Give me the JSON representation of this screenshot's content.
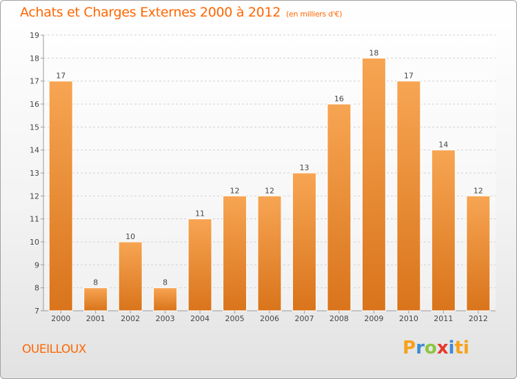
{
  "header": {
    "title": "Achats et Charges Externes 2000 à 2012",
    "subtitle": "(en milliers d'€)"
  },
  "footer": {
    "commune": "OUEILLOUX",
    "logo_text": "Proxiti",
    "logo_colors": [
      "#f7a11a",
      "#3b8bd6",
      "#8cc63f",
      "#e8372c",
      "#3b8bd6",
      "#f7a11a"
    ]
  },
  "chart_data": {
    "type": "bar",
    "title": "Achats et Charges Externes 2000 à 2012",
    "subtitle": "(en milliers d'€)",
    "categories": [
      "2000",
      "2001",
      "2002",
      "2003",
      "2004",
      "2005",
      "2006",
      "2007",
      "2008",
      "2009",
      "2010",
      "2011",
      "2012"
    ],
    "values": [
      17,
      8,
      10,
      8,
      11,
      12,
      12,
      13,
      16,
      18,
      17,
      14,
      12
    ],
    "data_labels": [
      "17",
      "8",
      "10",
      "8",
      "11",
      "12",
      "12",
      "13",
      "16",
      "18",
      "17",
      "14",
      "12"
    ],
    "ylim": [
      7,
      19
    ],
    "yticks": [
      7,
      8,
      9,
      10,
      11,
      12,
      13,
      14,
      15,
      16,
      17,
      18,
      19
    ],
    "xlabel": "",
    "ylabel": "",
    "grid": true,
    "bar_color_top": "#f7a553",
    "bar_color_bottom": "#d9741b"
  }
}
